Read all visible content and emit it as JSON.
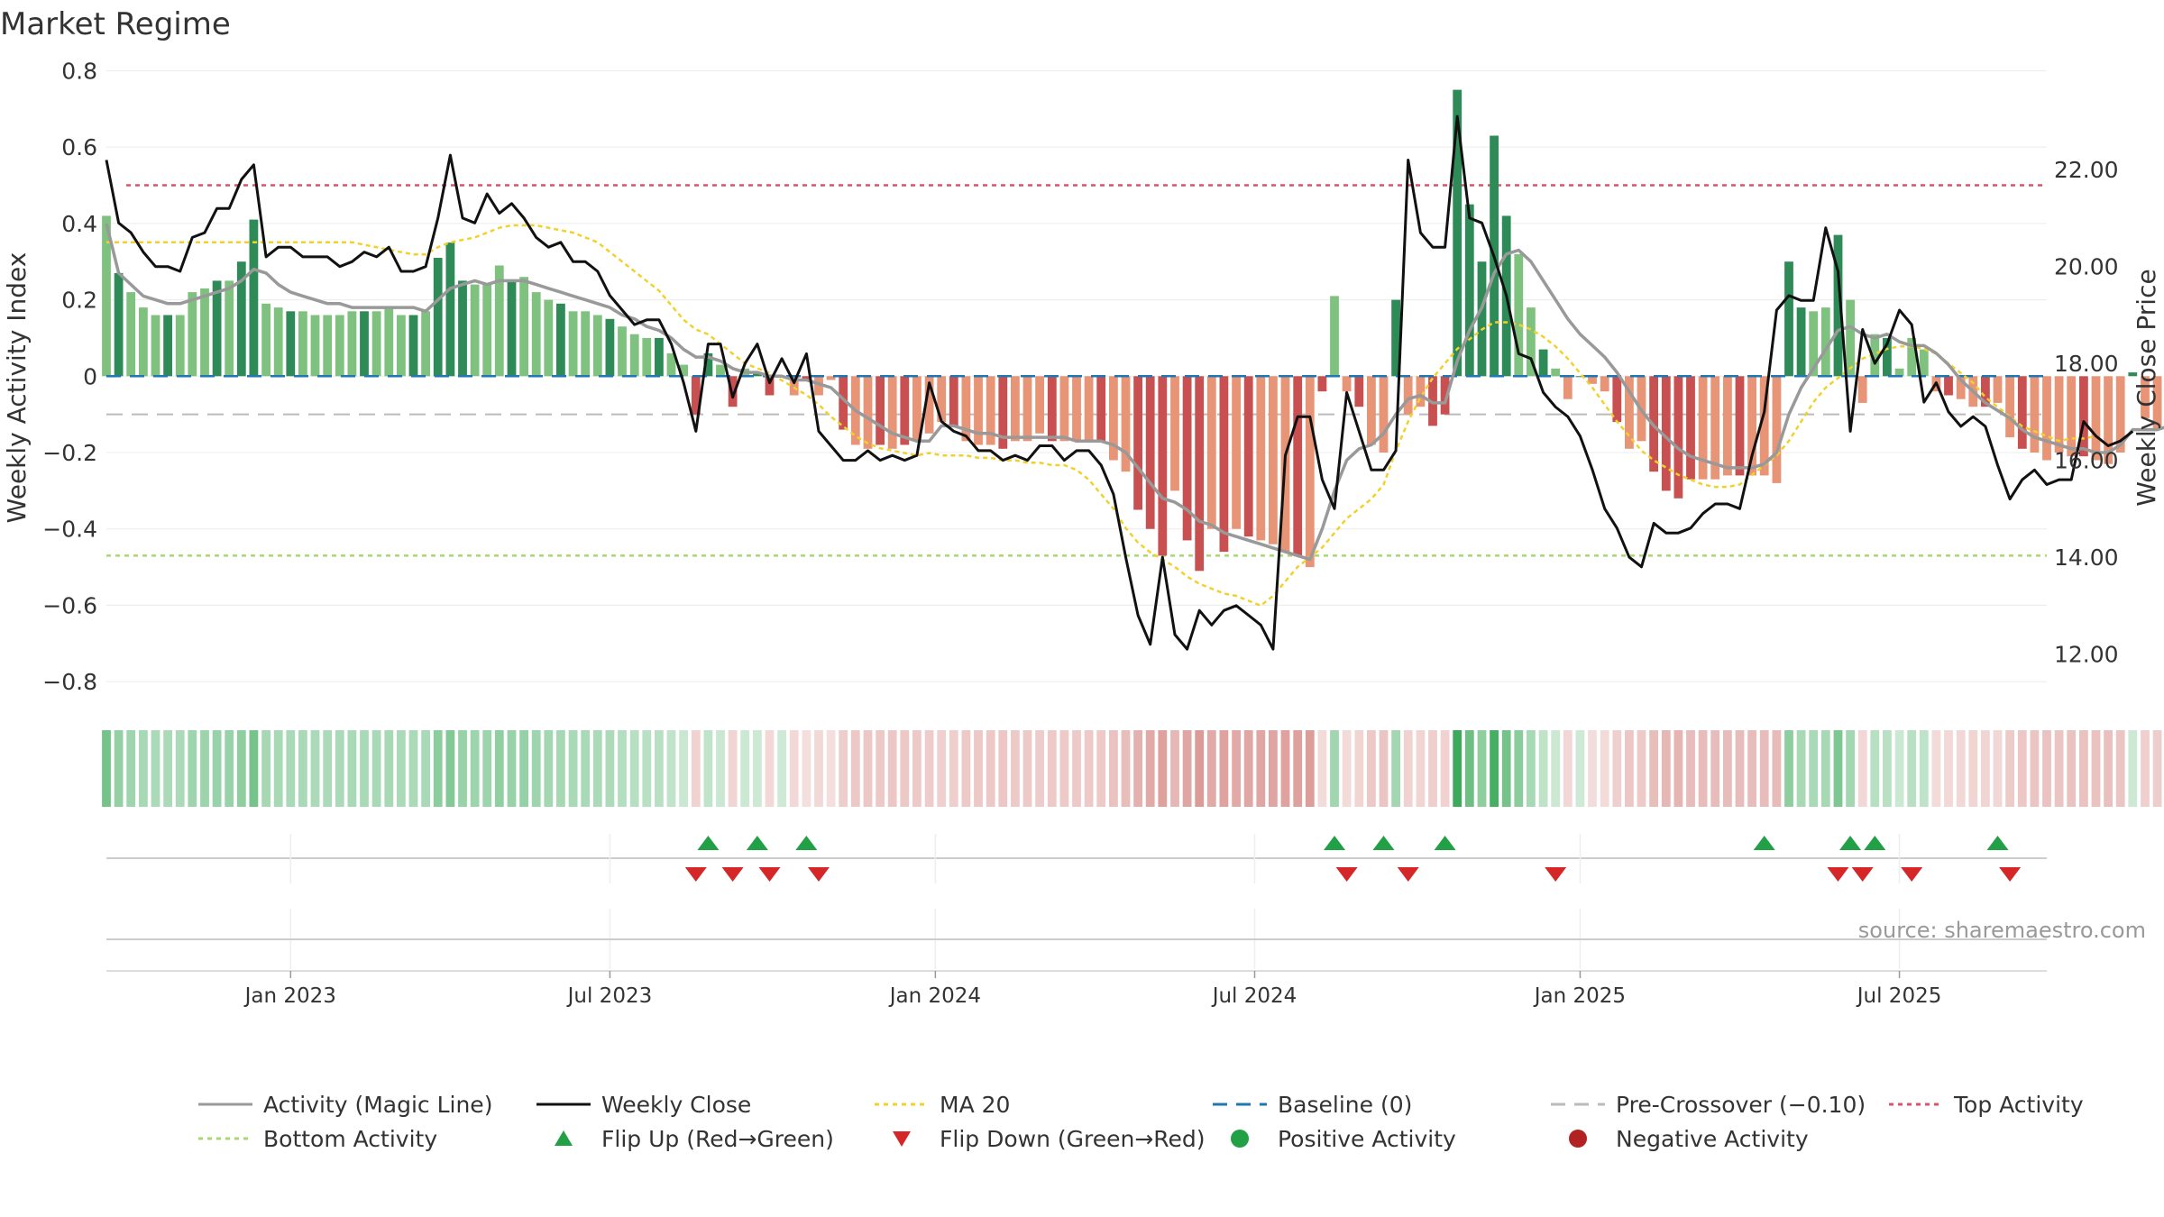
{
  "chart_data": {
    "type": "bar",
    "title": "Market Regime",
    "source": "source: sharemaestro.com",
    "ylabel_left": "Weekly Activity Index",
    "ylabel_right": "Weekly Close Price",
    "left_axis": {
      "range": [
        -0.88,
        0.82
      ],
      "ticks": [
        0.8,
        0.6,
        0.4,
        0.2,
        0,
        -0.2,
        -0.4,
        -0.6,
        -0.8
      ],
      "tick_labels": [
        "0.8",
        "0.6",
        "0.4",
        "0.2",
        "0",
        "−0.2",
        "−0.4",
        "−0.6",
        "−0.8"
      ]
    },
    "right_axis": {
      "range": [
        10.8,
        24.2
      ],
      "ticks": [
        22,
        20,
        18,
        16,
        14,
        12
      ],
      "tick_labels": [
        "22.00",
        "20.00",
        "18.00",
        "16.00",
        "14.00",
        "12.00"
      ]
    },
    "x_axis": {
      "start_week": 0,
      "end_week": 158,
      "tick_weeks": [
        15,
        41,
        67.5,
        93.5,
        120,
        146
      ],
      "tick_labels": [
        "Jan 2023",
        "Jul 2023",
        "Jan 2024",
        "Jul 2024",
        "Jan 2025",
        "Jul 2025"
      ]
    },
    "reference_lines": {
      "top_activity": 0.5,
      "bottom_activity": -0.47,
      "pre_crossover": -0.1,
      "baseline": 0
    },
    "series": [
      {
        "name": "Activity (Magic Line)",
        "role": "activity_bars_and_line",
        "color": "#999999"
      },
      {
        "name": "Weekly Close",
        "color": "#111111"
      },
      {
        "name": "MA 20",
        "color": "#f2d12a"
      }
    ],
    "activity": [
      0.42,
      0.27,
      0.22,
      0.18,
      0.16,
      0.16,
      0.16,
      0.22,
      0.23,
      0.25,
      0.25,
      0.3,
      0.41,
      0.19,
      0.18,
      0.17,
      0.17,
      0.16,
      0.16,
      0.16,
      0.17,
      0.17,
      0.17,
      0.18,
      0.16,
      0.16,
      0.17,
      0.31,
      0.35,
      0.25,
      0.24,
      0.24,
      0.29,
      0.25,
      0.26,
      0.22,
      0.2,
      0.19,
      0.17,
      0.17,
      0.16,
      0.15,
      0.13,
      0.11,
      0.1,
      0.1,
      0.06,
      0.03,
      -0.1,
      0.06,
      0.03,
      -0.08,
      0.02,
      0.01,
      -0.05,
      0,
      -0.05,
      -0.01,
      -0.05,
      -0.01,
      -0.14,
      -0.18,
      -0.19,
      -0.18,
      -0.19,
      -0.18,
      -0.17,
      -0.15,
      -0.12,
      -0.13,
      -0.17,
      -0.18,
      -0.18,
      -0.19,
      -0.17,
      -0.17,
      -0.15,
      -0.17,
      -0.17,
      -0.17,
      -0.17,
      -0.17,
      -0.22,
      -0.25,
      -0.35,
      -0.4,
      -0.47,
      -0.3,
      -0.43,
      -0.51,
      -0.4,
      -0.46,
      -0.4,
      -0.42,
      -0.43,
      -0.44,
      -0.46,
      -0.47,
      -0.5,
      -0.04,
      0.21,
      -0.04,
      -0.08,
      -0.18,
      -0.2,
      0.2,
      -0.1,
      -0.08,
      -0.13,
      -0.1,
      0.75,
      0.45,
      0.3,
      0.63,
      0.42,
      0.32,
      0.18,
      0.07,
      0.02,
      -0.06,
      0,
      -0.02,
      -0.04,
      -0.12,
      -0.19,
      -0.17,
      -0.25,
      -0.3,
      -0.32,
      -0.27,
      -0.27,
      -0.27,
      -0.26,
      -0.26,
      -0.26,
      -0.26,
      -0.28,
      0.3,
      0.18,
      0.17,
      0.18,
      0.37,
      0.2,
      -0.07,
      0.11,
      0.1,
      0.02,
      0.1,
      0.07,
      -0.04,
      -0.05,
      -0.06,
      -0.08,
      -0.08,
      -0.07,
      -0.16,
      -0.19,
      -0.2,
      -0.22,
      -0.2,
      -0.21,
      -0.21,
      -0.22,
      -0.23,
      -0.2,
      0.01,
      -0.11,
      -0.14,
      -0.14,
      -0.13
    ],
    "magic_line": [
      0.4,
      0.27,
      0.24,
      0.21,
      0.2,
      0.19,
      0.19,
      0.2,
      0.21,
      0.22,
      0.23,
      0.25,
      0.28,
      0.27,
      0.24,
      0.22,
      0.21,
      0.2,
      0.19,
      0.19,
      0.18,
      0.18,
      0.18,
      0.18,
      0.18,
      0.18,
      0.17,
      0.2,
      0.23,
      0.24,
      0.25,
      0.24,
      0.25,
      0.25,
      0.25,
      0.24,
      0.23,
      0.22,
      0.21,
      0.2,
      0.19,
      0.18,
      0.16,
      0.15,
      0.13,
      0.12,
      0.1,
      0.07,
      0.05,
      0.05,
      0.04,
      0.02,
      0.01,
      0.01,
      0,
      0,
      -0.01,
      -0.01,
      -0.02,
      -0.03,
      -0.06,
      -0.09,
      -0.11,
      -0.13,
      -0.15,
      -0.16,
      -0.17,
      -0.17,
      -0.13,
      -0.13,
      -0.14,
      -0.15,
      -0.15,
      -0.16,
      -0.16,
      -0.16,
      -0.16,
      -0.16,
      -0.16,
      -0.17,
      -0.17,
      -0.17,
      -0.18,
      -0.2,
      -0.24,
      -0.28,
      -0.32,
      -0.33,
      -0.35,
      -0.38,
      -0.39,
      -0.41,
      -0.42,
      -0.43,
      -0.44,
      -0.45,
      -0.46,
      -0.47,
      -0.48,
      -0.4,
      -0.3,
      -0.22,
      -0.19,
      -0.18,
      -0.15,
      -0.1,
      -0.06,
      -0.05,
      -0.07,
      -0.07,
      0.04,
      0.12,
      0.18,
      0.27,
      0.32,
      0.33,
      0.3,
      0.25,
      0.2,
      0.15,
      0.11,
      0.08,
      0.05,
      0.01,
      -0.04,
      -0.09,
      -0.13,
      -0.16,
      -0.19,
      -0.21,
      -0.22,
      -0.23,
      -0.24,
      -0.24,
      -0.24,
      -0.23,
      -0.2,
      -0.1,
      -0.03,
      0.02,
      0.07,
      0.12,
      0.13,
      0.11,
      0.1,
      0.11,
      0.09,
      0.08,
      0.08,
      0.06,
      0.03,
      -0.01,
      -0.04,
      -0.07,
      -0.09,
      -0.11,
      -0.14,
      -0.16,
      -0.17,
      -0.18,
      -0.19,
      -0.19,
      -0.2,
      -0.2,
      -0.18,
      -0.14,
      -0.14,
      -0.14,
      -0.13
    ],
    "weekly_close": [
      22.2,
      20.9,
      20.7,
      20.3,
      20.0,
      20.0,
      19.9,
      20.6,
      20.7,
      21.2,
      21.2,
      21.8,
      22.1,
      20.2,
      20.4,
      20.4,
      20.2,
      20.2,
      20.2,
      20.0,
      20.1,
      20.3,
      20.2,
      20.4,
      19.9,
      19.9,
      20.0,
      21.0,
      22.3,
      21.0,
      20.9,
      21.5,
      21.1,
      21.3,
      21.0,
      20.6,
      20.4,
      20.5,
      20.1,
      20.1,
      19.9,
      19.4,
      19.1,
      18.8,
      18.9,
      18.9,
      18.4,
      17.6,
      16.6,
      18.4,
      18.4,
      17.3,
      18.0,
      18.4,
      17.6,
      18.1,
      17.6,
      18.2,
      16.6,
      16.3,
      16.0,
      16.0,
      16.2,
      16.0,
      16.1,
      16.0,
      16.1,
      17.6,
      16.8,
      16.6,
      16.5,
      16.2,
      16.2,
      16.0,
      16.1,
      16.0,
      16.3,
      16.3,
      16.0,
      16.2,
      16.2,
      15.9,
      15.3,
      14.0,
      12.8,
      12.2,
      14.0,
      12.4,
      12.1,
      12.9,
      12.6,
      12.9,
      13.0,
      12.8,
      12.6,
      12.1,
      16.1,
      16.9,
      16.9,
      15.6,
      15.0,
      17.4,
      16.6,
      15.8,
      15.8,
      16.2,
      22.2,
      20.7,
      20.4,
      20.4,
      23.1,
      21.0,
      20.9,
      20.2,
      19.4,
      18.2,
      18.1,
      17.4,
      17.1,
      16.9,
      16.5,
      15.8,
      15.0,
      14.6,
      14.0,
      13.8,
      14.7,
      14.5,
      14.5,
      14.6,
      14.9,
      15.1,
      15.1,
      15.0,
      16.1,
      17.0,
      19.1,
      19.4,
      19.3,
      19.3,
      20.8,
      19.9,
      16.6,
      18.7,
      18.0,
      18.4,
      19.1,
      18.8,
      17.2,
      17.6,
      17.0,
      16.7,
      16.9,
      16.7,
      15.9,
      15.2,
      15.6,
      15.8,
      15.5,
      15.6,
      15.6,
      16.8,
      16.5,
      16.3,
      16.4,
      16.6
    ],
    "ma20": [
      20.5,
      20.5,
      20.5,
      20.5,
      20.5,
      20.5,
      20.5,
      20.5,
      20.5,
      20.5,
      20.5,
      20.5,
      20.5,
      20.5,
      20.5,
      20.5,
      20.5,
      20.5,
      20.5,
      20.5,
      20.5,
      20.45,
      20.4,
      20.35,
      20.3,
      20.25,
      20.25,
      20.4,
      20.5,
      20.55,
      20.6,
      20.7,
      20.8,
      20.85,
      20.85,
      20.85,
      20.8,
      20.75,
      20.7,
      20.6,
      20.5,
      20.3,
      20.1,
      19.9,
      19.7,
      19.5,
      19.2,
      18.9,
      18.7,
      18.6,
      18.4,
      18.2,
      18.0,
      17.9,
      17.8,
      17.65,
      17.5,
      17.35,
      17.15,
      16.9,
      16.7,
      16.5,
      16.35,
      16.25,
      16.2,
      16.15,
      16.1,
      16.15,
      16.1,
      16.1,
      16.1,
      16.05,
      16.05,
      16.0,
      16.0,
      15.95,
      15.95,
      15.9,
      15.9,
      15.8,
      15.6,
      15.3,
      15.0,
      14.6,
      14.3,
      14.1,
      13.95,
      13.8,
      13.6,
      13.45,
      13.35,
      13.25,
      13.2,
      13.1,
      13.0,
      13.2,
      13.5,
      13.8,
      14.0,
      14.2,
      14.5,
      14.8,
      15.0,
      15.2,
      15.5,
      16.2,
      16.8,
      17.3,
      17.7,
      18.0,
      18.3,
      18.5,
      18.7,
      18.85,
      18.85,
      18.8,
      18.7,
      18.55,
      18.35,
      18.1,
      17.8,
      17.5,
      17.15,
      16.8,
      16.5,
      16.2,
      16.0,
      15.85,
      15.7,
      15.6,
      15.5,
      15.45,
      15.45,
      15.5,
      15.7,
      15.9,
      16.1,
      16.4,
      16.8,
      17.2,
      17.5,
      17.7,
      17.9,
      18.1,
      18.2,
      18.3,
      18.35,
      18.35,
      18.3,
      18.2,
      18.0,
      17.8,
      17.6,
      17.3,
      17.1,
      16.9,
      16.7,
      16.6,
      16.5,
      16.4,
      16.45,
      16.45,
      16.5
    ],
    "flip_up_weeks": [
      49,
      53,
      57,
      100,
      104,
      109,
      135,
      142,
      144,
      154
    ],
    "flip_down_weeks": [
      48,
      51,
      54,
      58,
      101,
      106,
      118,
      141,
      143,
      147,
      155
    ],
    "legend": [
      {
        "label": "Activity (Magic Line)",
        "marker": "line",
        "color": "#999999"
      },
      {
        "label": "Weekly Close",
        "marker": "line",
        "color": "#111111"
      },
      {
        "label": "MA 20",
        "marker": "dotted",
        "color": "#f2d12a"
      },
      {
        "label": "Baseline (0)",
        "marker": "dashed",
        "color": "#1f77b4"
      },
      {
        "label": "Pre-Crossover (−0.10)",
        "marker": "dashed",
        "color": "#bbbbbb"
      },
      {
        "label": "Top Activity",
        "marker": "dotted",
        "color": "#d9536f"
      },
      {
        "label": "Bottom Activity",
        "marker": "dotted",
        "color": "#a8d870"
      },
      {
        "label": "Flip Up (Red→Green)",
        "marker": "triangle-up",
        "color": "#22a045"
      },
      {
        "label": "Flip Down (Green→Red)",
        "marker": "triangle-down",
        "color": "#d62728"
      },
      {
        "label": "Positive Activity",
        "marker": "circle",
        "color": "#22a045"
      },
      {
        "label": "Negative Activity",
        "marker": "circle",
        "color": "#b22222"
      }
    ],
    "colors": {
      "strong_green": "#2e8b57",
      "light_green": "#7fc27f",
      "strong_red": "#c85050",
      "light_red": "#e89476",
      "top_line": "#d9536f",
      "bottom_line": "#a8d870",
      "baseline": "#1f77b4",
      "pre_crossover": "#bbbbbb"
    }
  }
}
